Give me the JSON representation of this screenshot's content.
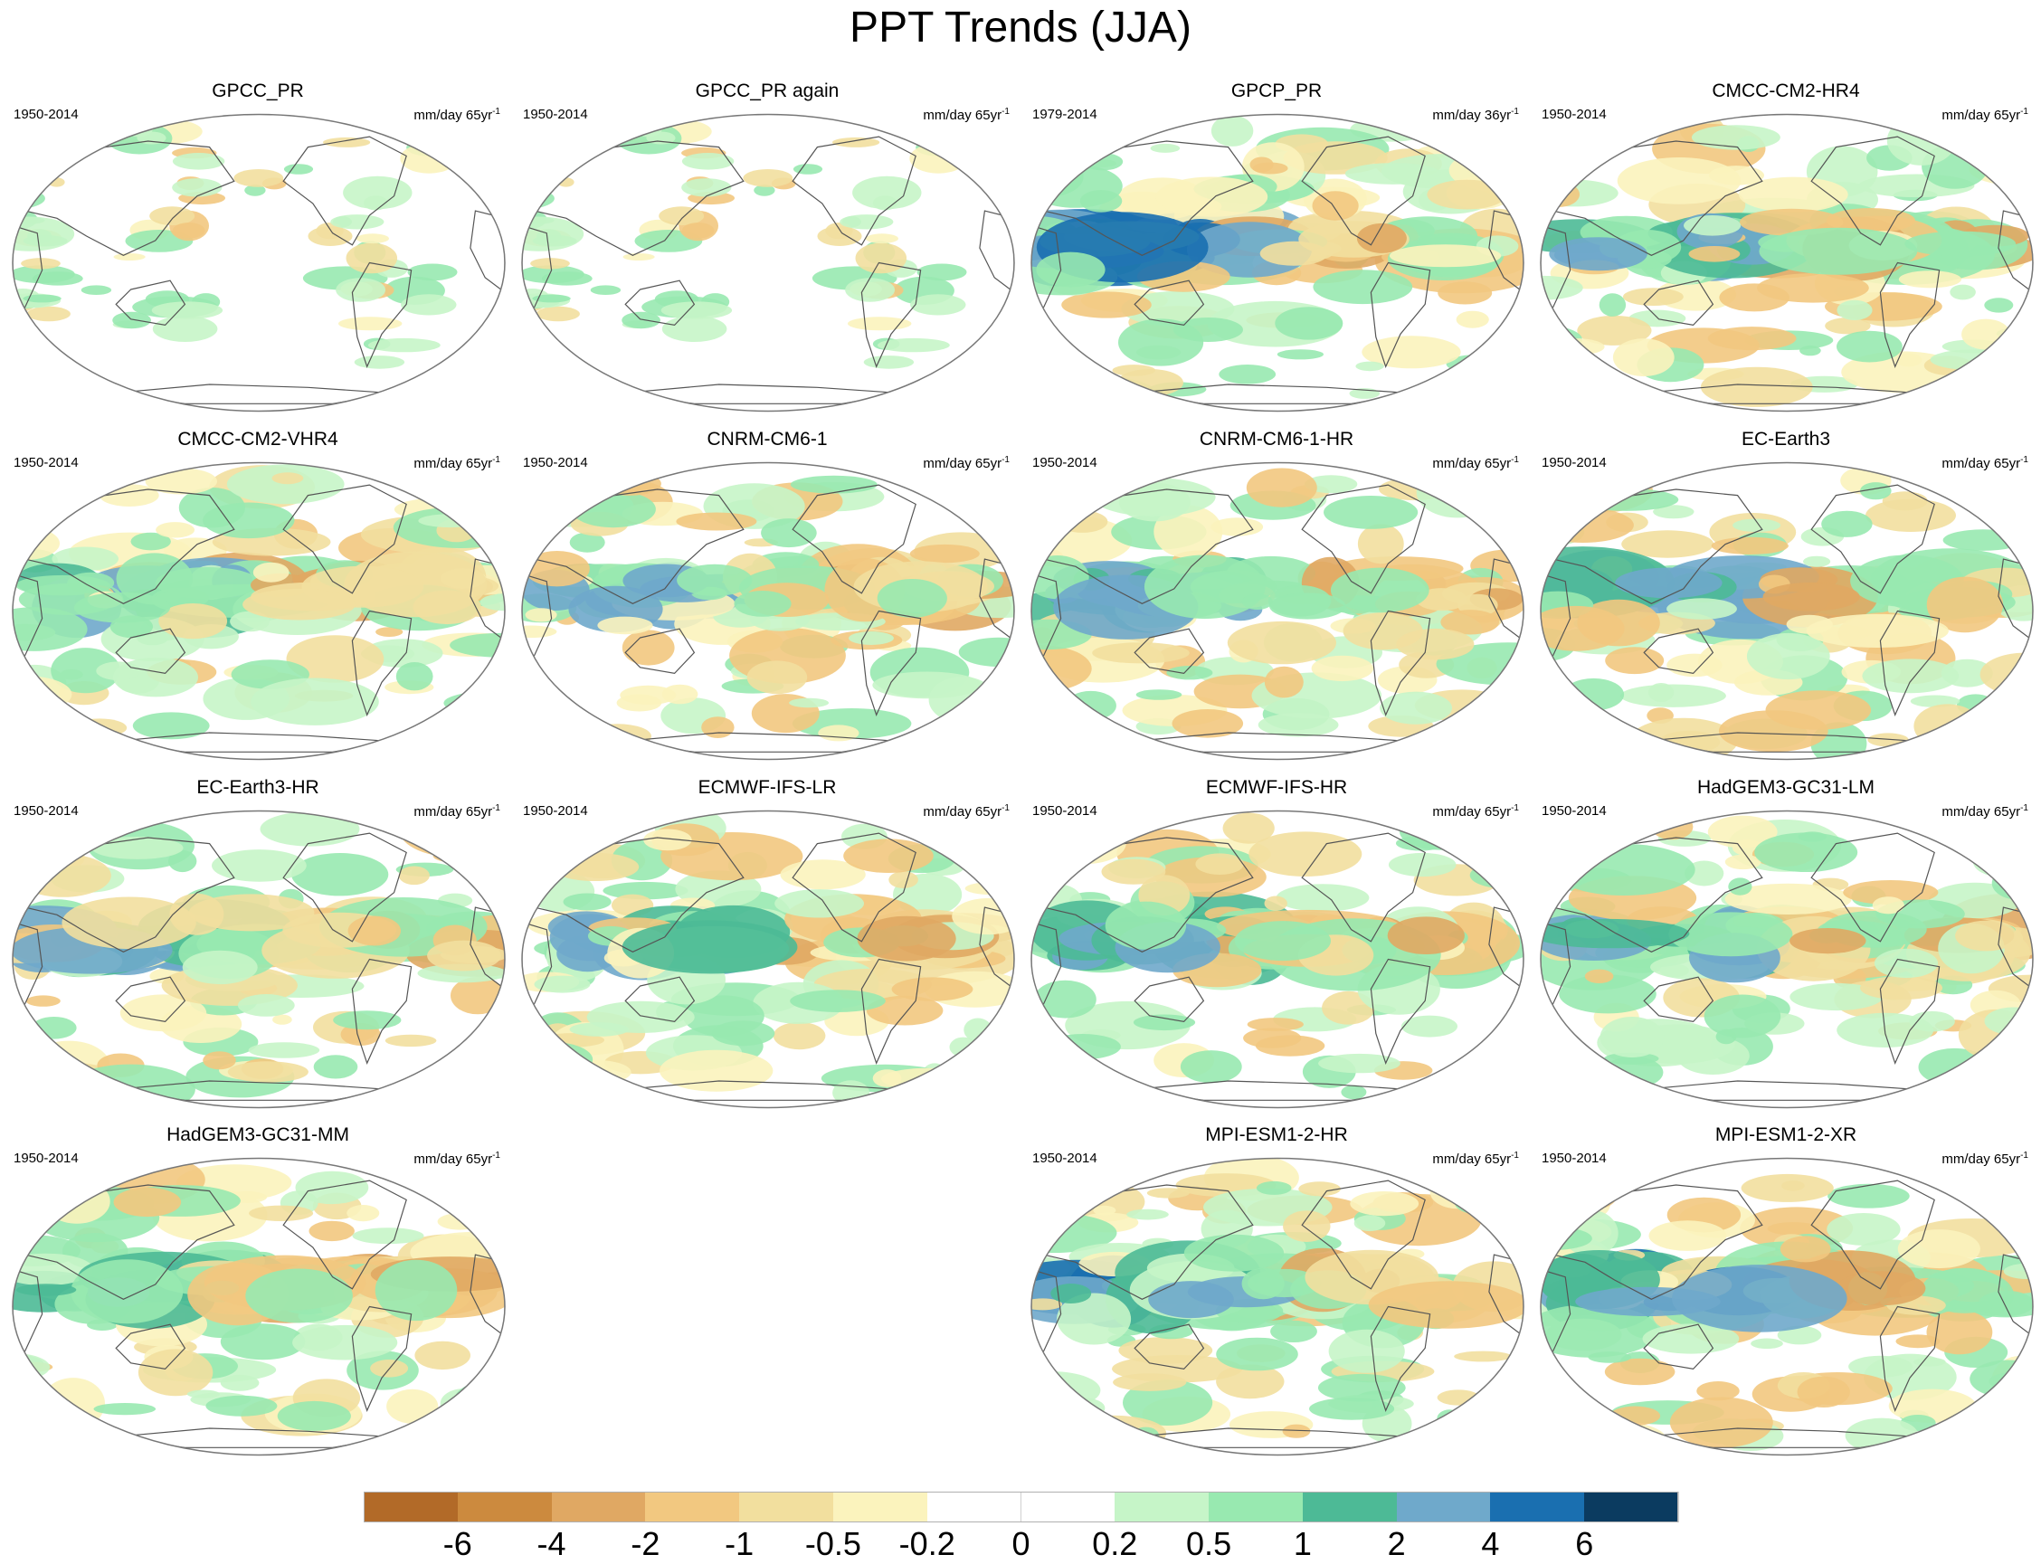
{
  "title": "PPT Trends (JJA)",
  "panels": [
    {
      "name": "GPCC_PR",
      "period": "1950-2014",
      "units": "mm/day 65yr",
      "units_exp": "-1",
      "col": 0,
      "row": 0,
      "intensity": 0.25,
      "style": "obs",
      "seed": 11
    },
    {
      "name": "GPCC_PR again",
      "period": "1950-2014",
      "units": "mm/day 65yr",
      "units_exp": "-1",
      "col": 1,
      "row": 0,
      "intensity": 0.25,
      "style": "obs",
      "seed": 11
    },
    {
      "name": "GPCP_PR",
      "period": "1979-2014",
      "units": "mm/day 36yr",
      "units_exp": "-1",
      "col": 2,
      "row": 0,
      "intensity": 0.95,
      "style": "full",
      "seed": 23
    },
    {
      "name": "CMCC-CM2-HR4",
      "period": "1950-2014",
      "units": "mm/day 65yr",
      "units_exp": "-1",
      "col": 3,
      "row": 0,
      "intensity": 0.8,
      "style": "full",
      "seed": 37
    },
    {
      "name": "CMCC-CM2-VHR4",
      "period": "1950-2014",
      "units": "mm/day 65yr",
      "units_exp": "-1",
      "col": 0,
      "row": 1,
      "intensity": 0.85,
      "style": "full",
      "seed": 41
    },
    {
      "name": "CNRM-CM6-1",
      "period": "1950-2014",
      "units": "mm/day 65yr",
      "units_exp": "-1",
      "col": 1,
      "row": 1,
      "intensity": 0.85,
      "style": "full",
      "seed": 53
    },
    {
      "name": "CNRM-CM6-1-HR",
      "period": "1950-2014",
      "units": "mm/day 65yr",
      "units_exp": "-1",
      "col": 2,
      "row": 1,
      "intensity": 0.85,
      "style": "full",
      "seed": 67
    },
    {
      "name": "EC-Earth3",
      "period": "1950-2014",
      "units": "mm/day 65yr",
      "units_exp": "-1",
      "col": 3,
      "row": 1,
      "intensity": 0.8,
      "style": "full",
      "seed": 71
    },
    {
      "name": "EC-Earth3-HR",
      "period": "1950-2014",
      "units": "mm/day 65yr",
      "units_exp": "-1",
      "col": 0,
      "row": 2,
      "intensity": 0.8,
      "style": "full",
      "seed": 83
    },
    {
      "name": "ECMWF-IFS-LR",
      "period": "1950-2014",
      "units": "mm/day 65yr",
      "units_exp": "-1",
      "col": 1,
      "row": 2,
      "intensity": 0.8,
      "style": "full",
      "seed": 97
    },
    {
      "name": "ECMWF-IFS-HR",
      "period": "1950-2014",
      "units": "mm/day 65yr",
      "units_exp": "-1",
      "col": 2,
      "row": 2,
      "intensity": 0.8,
      "style": "full",
      "seed": 101
    },
    {
      "name": "HadGEM3-GC31-LM",
      "period": "1950-2014",
      "units": "mm/day 65yr",
      "units_exp": "-1",
      "col": 3,
      "row": 2,
      "intensity": 0.9,
      "style": "full",
      "seed": 113
    },
    {
      "name": "HadGEM3-GC31-MM",
      "period": "1950-2014",
      "units": "mm/day 65yr",
      "units_exp": "-1",
      "col": 0,
      "row": 3,
      "intensity": 0.9,
      "style": "full",
      "seed": 127
    },
    {
      "name": "MPI-ESM1-2-HR",
      "period": "1950-2014",
      "units": "mm/day 65yr",
      "units_exp": "-1",
      "col": 2,
      "row": 3,
      "intensity": 0.95,
      "style": "full",
      "seed": 131
    },
    {
      "name": "MPI-ESM1-2-XR",
      "period": "1950-2014",
      "units": "mm/day 65yr",
      "units_exp": "-1",
      "col": 3,
      "row": 3,
      "intensity": 0.95,
      "style": "full",
      "seed": 139
    }
  ],
  "colorbar": {
    "colors": [
      "#b26a28",
      "#cc8a3e",
      "#e0a863",
      "#f2c880",
      "#f2df9e",
      "#fbf3bd",
      "#ffffff",
      "#ffffff",
      "#c6f5c8",
      "#98e9b0",
      "#4dba96",
      "#6fa9cb",
      "#1a6fb0",
      "#0b3b60"
    ],
    "labels": [
      "-6",
      "-4",
      "-2",
      "-1",
      "-0.5",
      "-0.2",
      "0",
      "0.2",
      "0.5",
      "1",
      "2",
      "4",
      "6"
    ]
  }
}
